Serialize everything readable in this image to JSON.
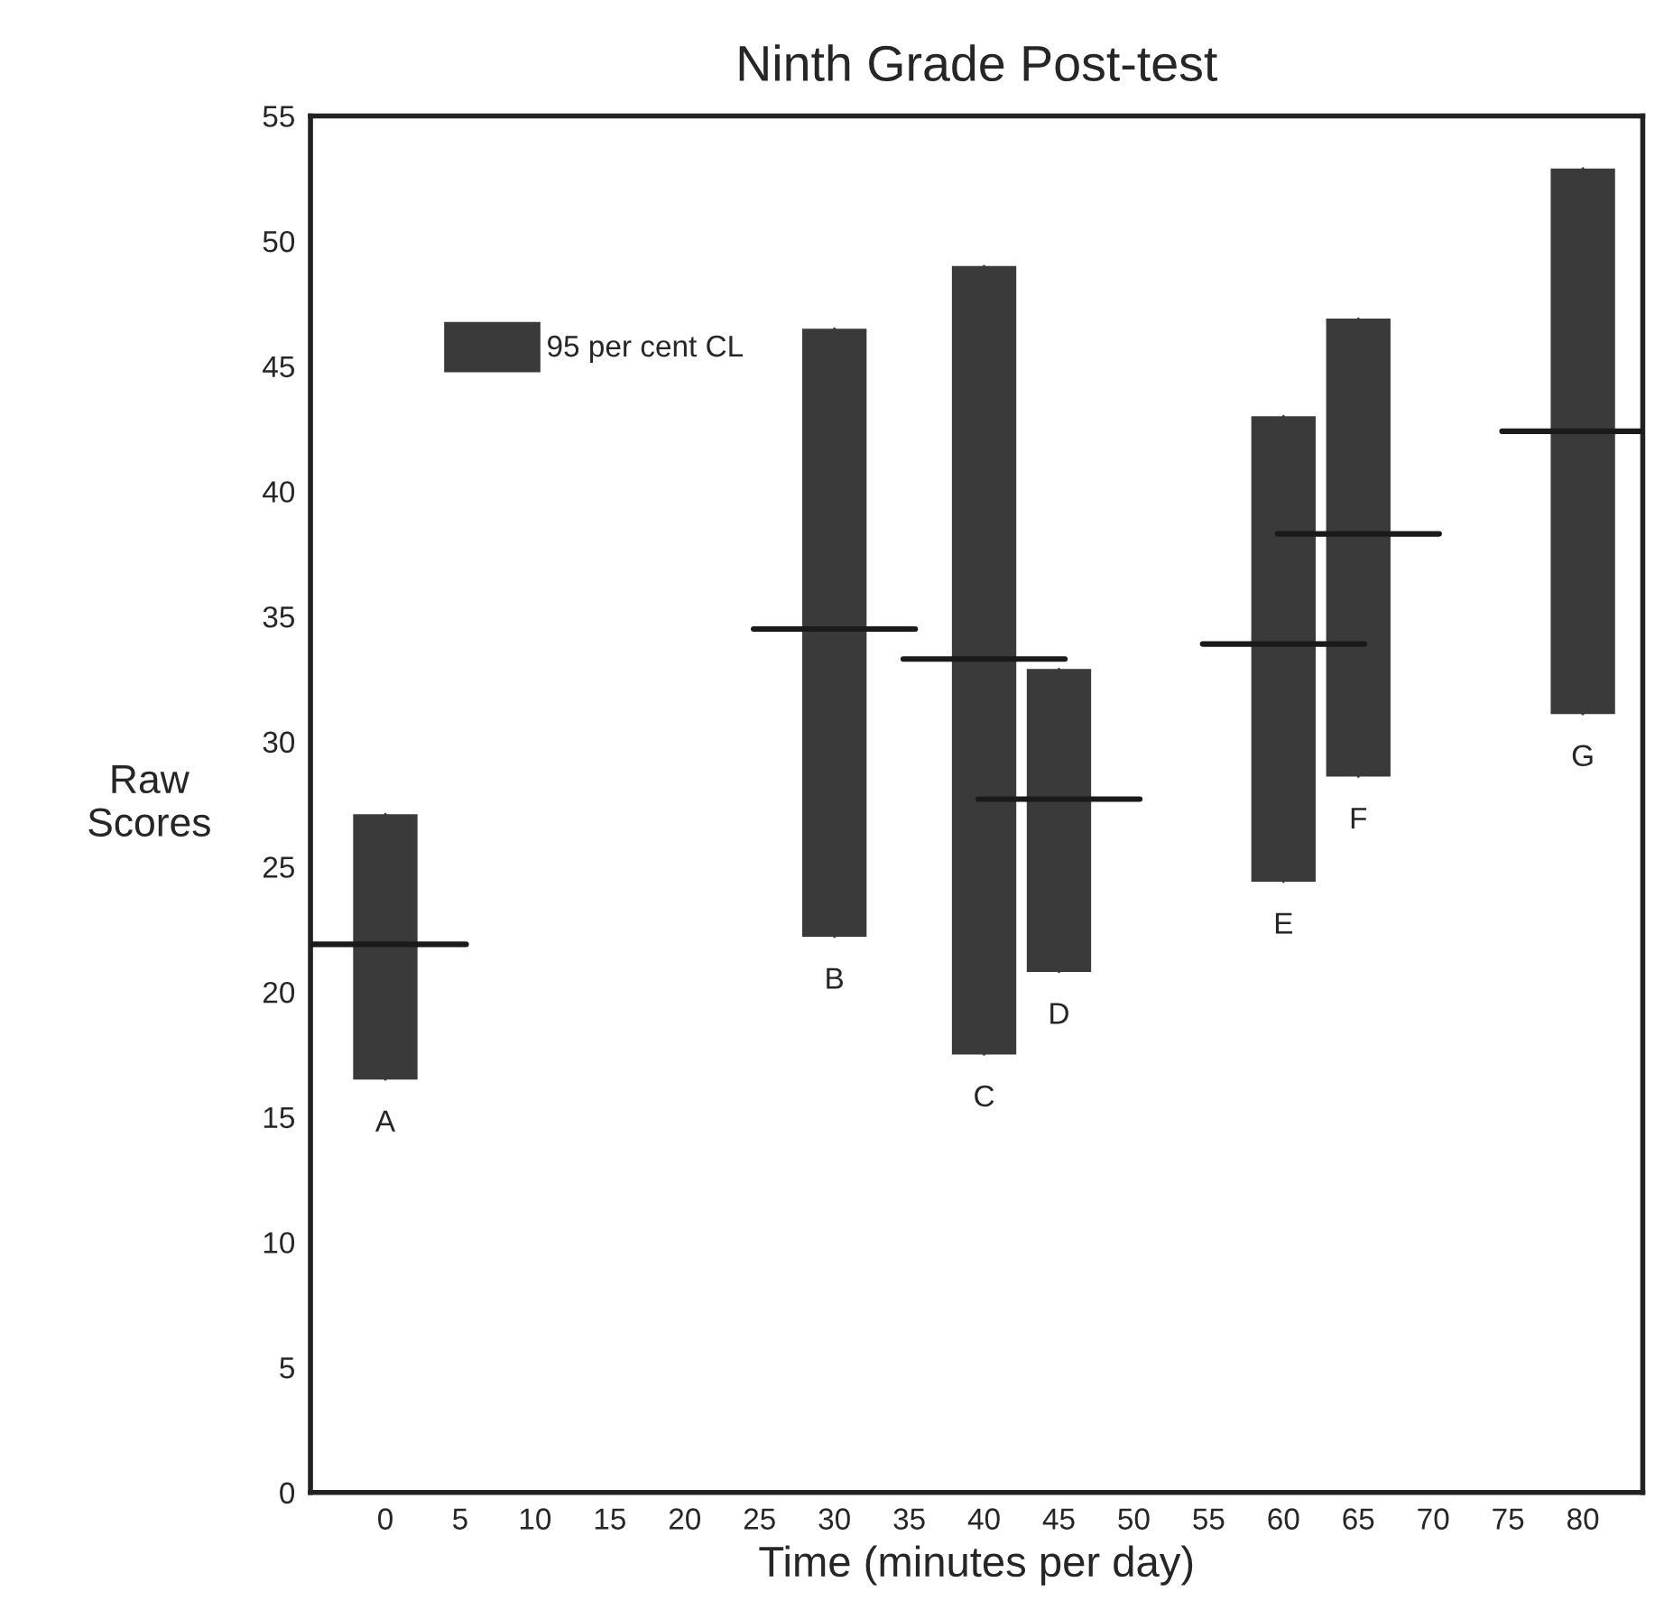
{
  "chart_data": {
    "type": "box",
    "title": "Ninth Grade Post-test",
    "xlabel": "Time (minutes per day)",
    "ylabel": "Raw\nScores",
    "x": [
      0,
      30,
      40,
      45,
      60,
      65,
      80
    ],
    "series": [
      {
        "name": "95 per cent CL",
        "color": "#3a3a3a",
        "boxes": [
          {
            "low": 16.5,
            "q1": 16.5,
            "median": 21.9,
            "q3": 27.1,
            "high": 27.1
          },
          {
            "low": 22.2,
            "q1": 22.2,
            "median": 34.5,
            "q3": 46.5,
            "high": 46.5
          },
          {
            "low": 17.5,
            "q1": 17.5,
            "median": 33.3,
            "q3": 49.0,
            "high": 49.0
          },
          {
            "low": 20.8,
            "q1": 20.8,
            "median": 27.7,
            "q3": 32.9,
            "high": 32.9
          },
          {
            "low": 24.4,
            "q1": 24.4,
            "median": 33.9,
            "q3": 43.0,
            "high": 43.0
          },
          {
            "low": 28.6,
            "q1": 28.6,
            "median": 38.3,
            "q3": 46.9,
            "high": 46.9
          },
          {
            "low": 31.1,
            "q1": 31.1,
            "median": 42.4,
            "q3": 52.9,
            "high": 52.9
          }
        ]
      }
    ],
    "annotations": [
      {
        "text": "A",
        "x": 0,
        "y": 16.5
      },
      {
        "text": "B",
        "x": 30,
        "y": 22.2
      },
      {
        "text": "C",
        "x": 40,
        "y": 17.5
      },
      {
        "text": "D",
        "x": 45,
        "y": 20.8
      },
      {
        "text": "E",
        "x": 60,
        "y": 24.4
      },
      {
        "text": "F",
        "x": 65,
        "y": 28.6
      },
      {
        "text": "G",
        "x": 80,
        "y": 31.1
      }
    ],
    "xlim": [
      -5,
      84
    ],
    "xticks": [
      0,
      5,
      10,
      15,
      20,
      25,
      30,
      35,
      40,
      45,
      50,
      55,
      60,
      65,
      70,
      75,
      80
    ],
    "ylim": [
      0,
      55
    ],
    "yticks": [
      0,
      5,
      10,
      15,
      20,
      25,
      30,
      35,
      40,
      45,
      50,
      55
    ],
    "grid": false,
    "legend": "top left"
  }
}
